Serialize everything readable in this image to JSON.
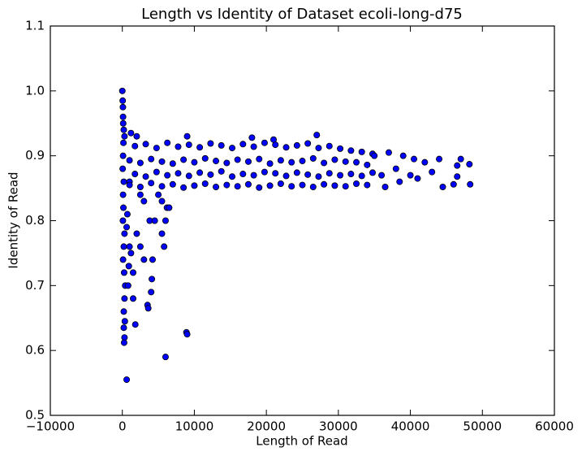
{
  "chart_data": {
    "type": "scatter",
    "title": "Length vs Identity of Dataset ecoli-long-d75",
    "x_label": "Length of Read",
    "y_label": "Identity of Read",
    "color": "#0000ff",
    "xlim": [
      -10000,
      60000
    ],
    "ylim": [
      0.5,
      1.1
    ],
    "xticks": [
      {
        "value": -10000,
        "label": "−10000"
      },
      0,
      10000,
      20000,
      30000,
      40000,
      50000,
      60000
    ],
    "yticks": [
      0.5,
      0.6,
      0.7,
      0.8,
      0.9,
      {
        "value": 1.0,
        "label": "1.0"
      },
      1.1
    ],
    "x": [
      0,
      50,
      80,
      100,
      120,
      200,
      300,
      150,
      100,
      50,
      200,
      100,
      150,
      80,
      300,
      200,
      100,
      250,
      400,
      300,
      200,
      350,
      200,
      300,
      250,
      600,
      800,
      900,
      1000,
      600,
      700,
      1200,
      1500,
      1800,
      1500,
      2000,
      2500,
      3000,
      3500,
      3600,
      4000,
      4100,
      4200,
      3800,
      4500,
      5500,
      5800,
      6000,
      6200,
      6500,
      6000,
      8900,
      9000,
      1200,
      2000,
      5000,
      5500,
      3000,
      2500,
      1000,
      1000,
      2500,
      4000,
      5500,
      7000,
      8500,
      10000,
      11500,
      13000,
      14500,
      16000,
      17500,
      19000,
      20500,
      22000,
      23500,
      25000,
      26500,
      28000,
      29500,
      31000,
      32500,
      34000,
      1750,
      3250,
      4750,
      6250,
      7750,
      9250,
      10750,
      12250,
      13750,
      15250,
      16750,
      18250,
      19750,
      21250,
      22750,
      24250,
      25750,
      27250,
      28750,
      30250,
      31750,
      33250,
      34750,
      1000,
      2500,
      4000,
      5500,
      7000,
      8500,
      10000,
      11500,
      13000,
      14500,
      16000,
      17500,
      19000,
      20500,
      22000,
      23500,
      25000,
      26500,
      28000,
      29500,
      31000,
      32500,
      34000,
      1750,
      3250,
      4750,
      6250,
      7750,
      9250,
      10750,
      12250,
      13750,
      15250,
      16750,
      18250,
      19750,
      21250,
      22750,
      24250,
      25750,
      27250,
      28750,
      30250,
      31750,
      33250,
      34750,
      27000,
      18000,
      9000,
      21000,
      35000,
      36000,
      37000,
      38000,
      38500,
      39000,
      40000,
      40500,
      41000,
      42000,
      43000,
      44000,
      44500,
      46000,
      46500,
      46500,
      47000,
      48200,
      48300,
      36500
    ],
    "values": [
      1.0,
      0.985,
      0.975,
      0.96,
      0.95,
      0.94,
      0.93,
      0.92,
      0.9,
      0.88,
      0.86,
      0.84,
      0.82,
      0.8,
      0.78,
      0.76,
      0.74,
      0.72,
      0.7,
      0.68,
      0.66,
      0.645,
      0.635,
      0.62,
      0.612,
      0.555,
      0.7,
      0.73,
      0.76,
      0.79,
      0.81,
      0.75,
      0.68,
      0.64,
      0.72,
      0.78,
      0.76,
      0.74,
      0.67,
      0.665,
      0.69,
      0.71,
      0.74,
      0.8,
      0.8,
      0.78,
      0.76,
      0.8,
      0.82,
      0.82,
      0.59,
      0.628,
      0.625,
      0.935,
      0.93,
      0.84,
      0.83,
      0.83,
      0.84,
      0.86,
      0.855,
      0.852,
      0.858,
      0.853,
      0.856,
      0.851,
      0.854,
      0.857,
      0.852,
      0.855,
      0.853,
      0.856,
      0.851,
      0.854,
      0.857,
      0.853,
      0.855,
      0.852,
      0.856,
      0.854,
      0.853,
      0.857,
      0.855,
      0.872,
      0.868,
      0.875,
      0.87,
      0.873,
      0.869,
      0.874,
      0.871,
      0.876,
      0.868,
      0.872,
      0.87,
      0.875,
      0.873,
      0.869,
      0.874,
      0.871,
      0.868,
      0.873,
      0.87,
      0.872,
      0.869,
      0.874,
      0.893,
      0.889,
      0.895,
      0.891,
      0.888,
      0.894,
      0.89,
      0.896,
      0.892,
      0.889,
      0.894,
      0.891,
      0.895,
      0.888,
      0.893,
      0.89,
      0.892,
      0.896,
      0.889,
      0.894,
      0.891,
      0.89,
      0.886,
      0.915,
      0.918,
      0.912,
      0.92,
      0.914,
      0.917,
      0.913,
      0.919,
      0.916,
      0.912,
      0.918,
      0.914,
      0.92,
      0.917,
      0.913,
      0.916,
      0.919,
      0.912,
      0.915,
      0.911,
      0.908,
      0.906,
      0.903,
      0.932,
      0.928,
      0.93,
      0.925,
      0.9,
      0.87,
      0.905,
      0.88,
      0.86,
      0.9,
      0.87,
      0.895,
      0.865,
      0.89,
      0.875,
      0.895,
      0.852,
      0.856,
      0.885,
      0.868,
      0.895,
      0.887,
      0.856,
      0.852
    ]
  }
}
